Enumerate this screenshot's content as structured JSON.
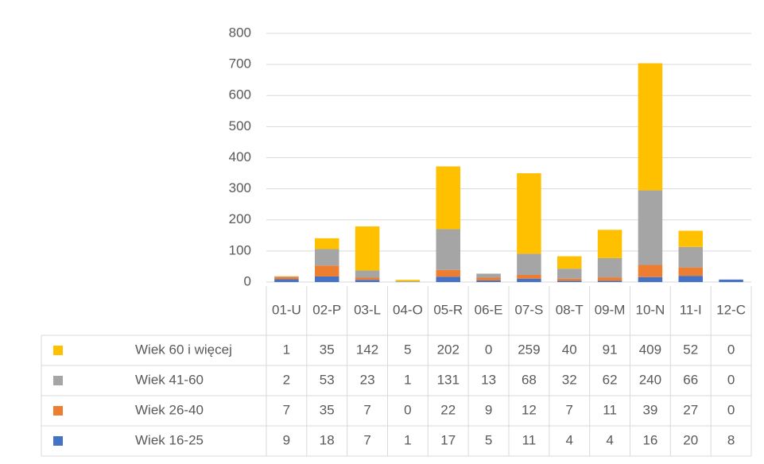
{
  "chart_data": {
    "type": "stacked_bar",
    "categories": [
      "01-U",
      "02-P",
      "03-L",
      "04-O",
      "05-R",
      "06-E",
      "07-S",
      "08-T",
      "09-M",
      "10-N",
      "11-I",
      "12-C"
    ],
    "series": [
      {
        "name": "Wiek 16-25",
        "color": "#4472c4",
        "values": [
          9,
          18,
          7,
          1,
          17,
          5,
          11,
          4,
          4,
          16,
          20,
          8
        ]
      },
      {
        "name": "Wiek 26-40",
        "color": "#ed7d31",
        "values": [
          7,
          35,
          7,
          0,
          22,
          9,
          12,
          7,
          11,
          39,
          27,
          0
        ]
      },
      {
        "name": "Wiek 41-60",
        "color": "#a5a5a5",
        "values": [
          2,
          53,
          23,
          1,
          131,
          13,
          68,
          32,
          62,
          240,
          66,
          0
        ]
      },
      {
        "name": "Wiek 60 i więcej",
        "color": "#ffc000",
        "values": [
          1,
          35,
          142,
          5,
          202,
          0,
          259,
          40,
          91,
          409,
          52,
          0
        ]
      }
    ],
    "ylim": [
      0,
      800
    ],
    "yticks": [
      0,
      100,
      200,
      300,
      400,
      500,
      600,
      700,
      800
    ],
    "grid": true,
    "data_table": true
  }
}
